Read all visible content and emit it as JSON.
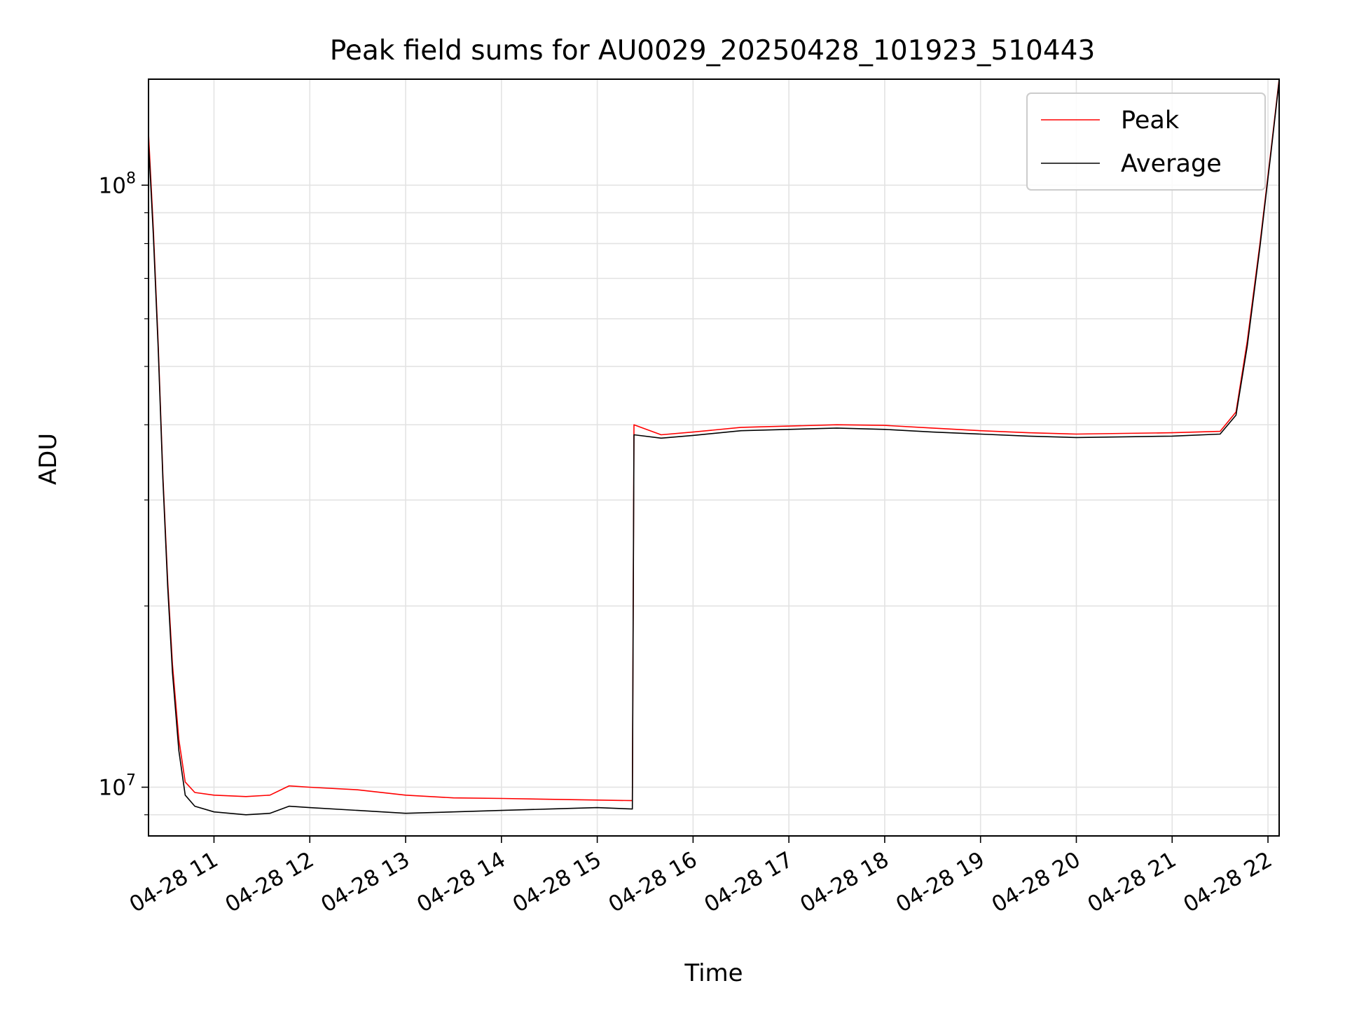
{
  "chart_data": {
    "type": "line",
    "title": "Peak field sums for AU0029_20250428_101923_510443",
    "xlabel": "Time",
    "ylabel": "ADU",
    "y_scale": "log",
    "xlim": [
      "2025-04-28 10:19",
      "2025-04-28 22:07"
    ],
    "ylim": [
      8300000,
      150000000
    ],
    "x_ticks": [
      "2025-04-28 11:00",
      "2025-04-28 12:00",
      "2025-04-28 13:00",
      "2025-04-28 14:00",
      "2025-04-28 15:00",
      "2025-04-28 16:00",
      "2025-04-28 17:00",
      "2025-04-28 18:00",
      "2025-04-28 19:00",
      "2025-04-28 20:00",
      "2025-04-28 21:00",
      "2025-04-28 22:00"
    ],
    "x_tick_labels": [
      "04-28 11",
      "04-28 12",
      "04-28 13",
      "04-28 14",
      "04-28 15",
      "04-28 16",
      "04-28 17",
      "04-28 18",
      "04-28 19",
      "04-28 20",
      "04-28 21",
      "04-28 22"
    ],
    "y_ticks": [
      10000000,
      100000000
    ],
    "y_tick_labels": [
      {
        "base": "10",
        "exp": "7"
      },
      {
        "base": "10",
        "exp": "8"
      }
    ],
    "grid": true,
    "legend_position": "top-right",
    "series": [
      {
        "name": "Peak",
        "color": "#ff0000",
        "points": [
          [
            "2025-04-28 10:19",
            122000000
          ],
          [
            "2025-04-28 10:22",
            85000000
          ],
          [
            "2025-04-28 10:25",
            55000000
          ],
          [
            "2025-04-28 10:28",
            33000000
          ],
          [
            "2025-04-28 10:31",
            22000000
          ],
          [
            "2025-04-28 10:34",
            16000000
          ],
          [
            "2025-04-28 10:38",
            12000000
          ],
          [
            "2025-04-28 10:42",
            10200000
          ],
          [
            "2025-04-28 10:48",
            9800000
          ],
          [
            "2025-04-28 11:00",
            9700000
          ],
          [
            "2025-04-28 11:20",
            9650000
          ],
          [
            "2025-04-28 11:35",
            9700000
          ],
          [
            "2025-04-28 11:47",
            10050000
          ],
          [
            "2025-04-28 12:00",
            10000000
          ],
          [
            "2025-04-28 12:30",
            9900000
          ],
          [
            "2025-04-28 13:00",
            9700000
          ],
          [
            "2025-04-28 13:30",
            9600000
          ],
          [
            "2025-04-28 14:00",
            9580000
          ],
          [
            "2025-04-28 14:30",
            9550000
          ],
          [
            "2025-04-28 15:00",
            9520000
          ],
          [
            "2025-04-28 15:22",
            9500000
          ],
          [
            "2025-04-28 15:23",
            40000000
          ],
          [
            "2025-04-28 15:40",
            38500000
          ],
          [
            "2025-04-28 16:00",
            38900000
          ],
          [
            "2025-04-28 16:30",
            39600000
          ],
          [
            "2025-04-28 17:00",
            39800000
          ],
          [
            "2025-04-28 17:30",
            40000000
          ],
          [
            "2025-04-28 18:00",
            39900000
          ],
          [
            "2025-04-28 18:30",
            39500000
          ],
          [
            "2025-04-28 19:00",
            39100000
          ],
          [
            "2025-04-28 19:30",
            38800000
          ],
          [
            "2025-04-28 20:00",
            38600000
          ],
          [
            "2025-04-28 20:30",
            38700000
          ],
          [
            "2025-04-28 21:00",
            38800000
          ],
          [
            "2025-04-28 21:30",
            39000000
          ],
          [
            "2025-04-28 21:40",
            42000000
          ],
          [
            "2025-04-28 21:47",
            55000000
          ],
          [
            "2025-04-28 21:55",
            80000000
          ],
          [
            "2025-04-28 22:02",
            115000000
          ],
          [
            "2025-04-28 22:07",
            150000000
          ]
        ]
      },
      {
        "name": "Average",
        "color": "#000000",
        "points": [
          [
            "2025-04-28 10:19",
            118000000
          ],
          [
            "2025-04-28 10:22",
            83000000
          ],
          [
            "2025-04-28 10:25",
            54000000
          ],
          [
            "2025-04-28 10:28",
            32500000
          ],
          [
            "2025-04-28 10:31",
            21500000
          ],
          [
            "2025-04-28 10:34",
            15500000
          ],
          [
            "2025-04-28 10:38",
            11500000
          ],
          [
            "2025-04-28 10:42",
            9700000
          ],
          [
            "2025-04-28 10:48",
            9300000
          ],
          [
            "2025-04-28 11:00",
            9100000
          ],
          [
            "2025-04-28 11:20",
            9000000
          ],
          [
            "2025-04-28 11:35",
            9050000
          ],
          [
            "2025-04-28 11:47",
            9300000
          ],
          [
            "2025-04-28 12:00",
            9250000
          ],
          [
            "2025-04-28 12:30",
            9150000
          ],
          [
            "2025-04-28 13:00",
            9050000
          ],
          [
            "2025-04-28 13:30",
            9100000
          ],
          [
            "2025-04-28 14:00",
            9150000
          ],
          [
            "2025-04-28 14:30",
            9200000
          ],
          [
            "2025-04-28 15:00",
            9250000
          ],
          [
            "2025-04-28 15:22",
            9200000
          ],
          [
            "2025-04-28 15:23",
            38500000
          ],
          [
            "2025-04-28 15:40",
            38000000
          ],
          [
            "2025-04-28 16:00",
            38400000
          ],
          [
            "2025-04-28 16:30",
            39100000
          ],
          [
            "2025-04-28 17:00",
            39300000
          ],
          [
            "2025-04-28 17:30",
            39500000
          ],
          [
            "2025-04-28 18:00",
            39300000
          ],
          [
            "2025-04-28 18:30",
            38900000
          ],
          [
            "2025-04-28 19:00",
            38600000
          ],
          [
            "2025-04-28 19:30",
            38300000
          ],
          [
            "2025-04-28 20:00",
            38100000
          ],
          [
            "2025-04-28 20:30",
            38200000
          ],
          [
            "2025-04-28 21:00",
            38300000
          ],
          [
            "2025-04-28 21:30",
            38600000
          ],
          [
            "2025-04-28 21:40",
            41500000
          ],
          [
            "2025-04-28 21:47",
            54000000
          ],
          [
            "2025-04-28 21:55",
            79000000
          ],
          [
            "2025-04-28 22:02",
            114000000
          ],
          [
            "2025-04-28 22:07",
            149000000
          ]
        ]
      }
    ]
  }
}
